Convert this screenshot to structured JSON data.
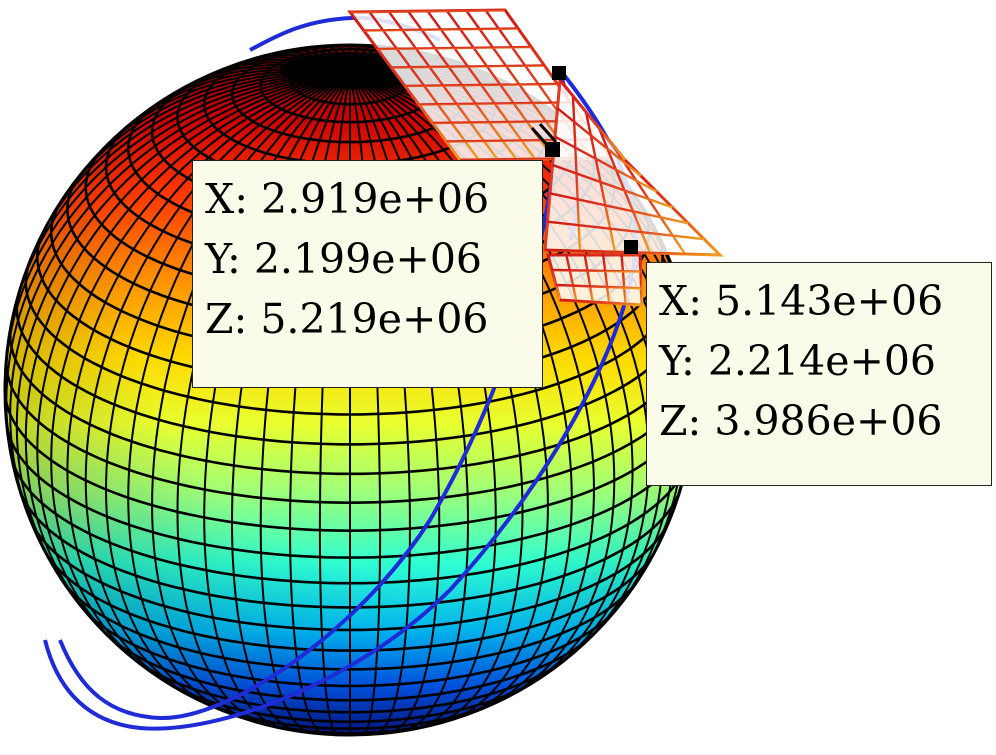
{
  "figure": {
    "colors": {
      "sphere_edges": "#000000",
      "orbit": "#1f2bd6",
      "panel_edge_top": "#c81e1e",
      "panel_edge_bottom": "#e8931f",
      "datatip_background": "#fbfbe9",
      "datatip_border": "#222222"
    },
    "colormap": "jet",
    "marker_icon": "datatip-marker-icon"
  },
  "datatips": [
    {
      "lines": [
        "X: 2.919e+06",
        "Y: 2.199e+06",
        "Z: 5.219e+06"
      ]
    },
    {
      "lines": [
        "X: 5.143e+06",
        "Y: 2.214e+06",
        "Z: 3.986e+06"
      ]
    }
  ]
}
